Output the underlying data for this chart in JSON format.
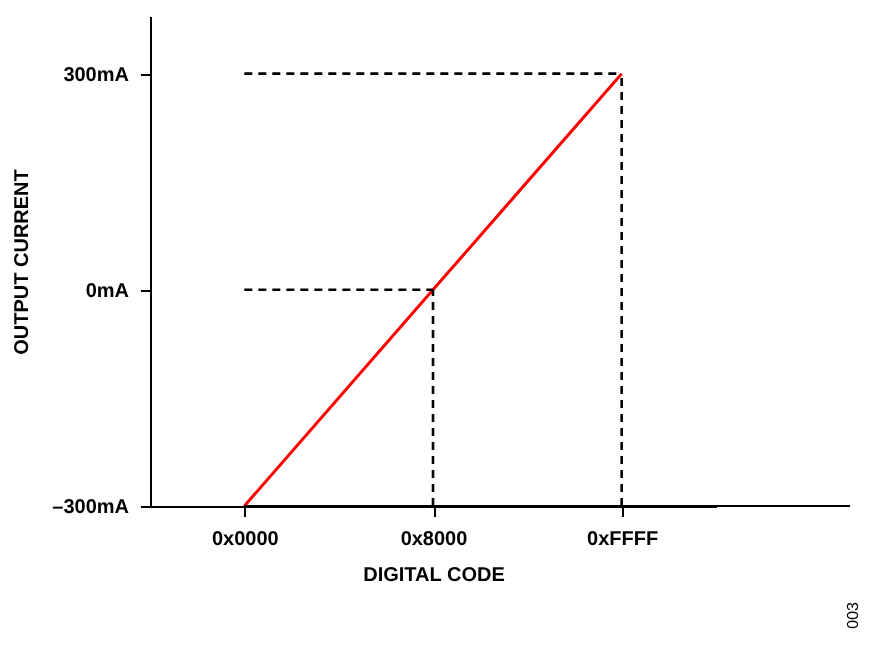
{
  "chart_data": {
    "type": "line",
    "xlabel": "DIGITAL CODE",
    "ylabel": "OUTPUT CURRENT",
    "categories": [
      "0x0000",
      "0x8000",
      "0xFFFF"
    ],
    "series": [
      {
        "color": "#ff0000",
        "values": [
          -300,
          0,
          300
        ]
      }
    ],
    "ylim": [
      -300,
      380
    ],
    "yticks": [
      {
        "value": -300,
        "label": "–300mA"
      },
      {
        "value": 0,
        "label": "0mA"
      },
      {
        "value": 300,
        "label": "300mA"
      }
    ],
    "ref_lines": [
      {
        "axis": "x",
        "value": "0x8000",
        "line_style": "dashed"
      },
      {
        "axis": "x",
        "value": "0xFFFF",
        "line_style": "dashed"
      },
      {
        "axis": "y",
        "value": 0,
        "line_style": "dashed"
      },
      {
        "axis": "y",
        "value": 300,
        "line_style": "dashed"
      }
    ],
    "grid": false,
    "marker": "none",
    "line_style": "solid",
    "annotations": [
      "003"
    ]
  }
}
